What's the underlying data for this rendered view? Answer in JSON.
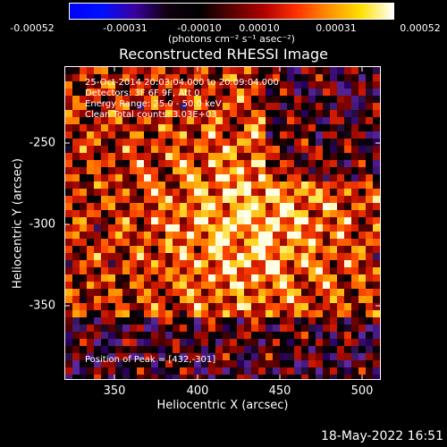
{
  "colorbar": {
    "ticks": [
      "-0.00052",
      "-0.00031",
      "-0.00010",
      "0.00010",
      "0.00031",
      "0.00052"
    ],
    "units_label": "(photons cm⁻² s⁻¹ asec⁻²)",
    "stops": [
      "#0000ff",
      "#0010ff",
      "#3a00a0",
      "#100010",
      "#000000",
      "#5a0000",
      "#b00000",
      "#ff3000",
      "#ff9000",
      "#ffe000",
      "#ffffff"
    ]
  },
  "plot": {
    "title": "Reconstructed RHESSI Image",
    "info_lines": [
      "25-Oct-2014 20:03:04.000 to 20:09:04.000",
      "Detectors: 3F 6F 9F, Att 0",
      "Energy Range: 25.0 - 50.0 keV",
      "Clean     Total counts: 3.03E+03"
    ],
    "peak_label": "Position of Peak = [432,-301]",
    "x_label": "Heliocentric X (arcsec)",
    "y_label": "Heliocentric Y (arcsec)",
    "x_ticks": [
      "350",
      "400",
      "450",
      "500"
    ],
    "y_ticks": [
      "-250",
      "-300",
      "-350"
    ],
    "x_range": [
      320,
      512
    ],
    "y_range": [
      -395,
      -205
    ],
    "peak": [
      432,
      -301
    ]
  },
  "timestamp": "18-May-2022 16:51"
}
